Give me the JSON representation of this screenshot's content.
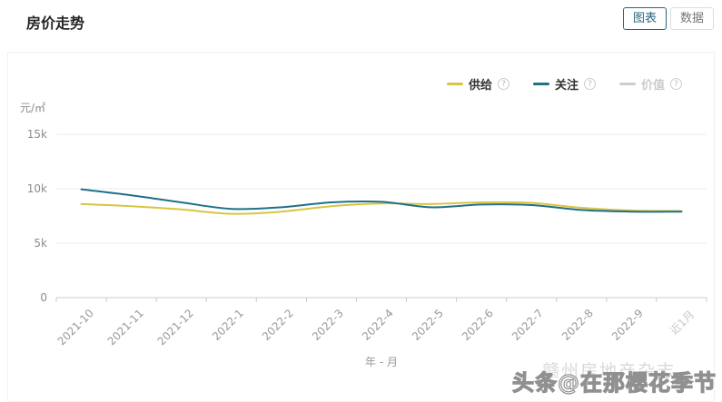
{
  "header": {
    "title": "房价走势"
  },
  "view_toggle": {
    "chart_label": "图表",
    "data_label": "数据",
    "active": "图表"
  },
  "legend": [
    {
      "label": "供给",
      "color": "#d9c542",
      "enabled": true,
      "help": "?"
    },
    {
      "label": "关注",
      "color": "#1f7089",
      "enabled": true,
      "help": "?"
    },
    {
      "label": "价值",
      "color": "#cccccc",
      "enabled": false,
      "help": "?"
    }
  ],
  "chart_data": {
    "type": "line",
    "title": "房价走势",
    "unit_label": "元/㎡",
    "xlabel": "年 - 月",
    "ylabel": "元/㎡",
    "grid": true,
    "legend_position": "top-right",
    "ylim": [
      0,
      15000
    ],
    "yticks": [
      {
        "label": "0",
        "value": 0
      },
      {
        "label": "5k",
        "value": 5000
      },
      {
        "label": "10k",
        "value": 10000
      },
      {
        "label": "15k",
        "value": 15000
      }
    ],
    "categories": [
      "2021-10",
      "2021-11",
      "2021-12",
      "2022-1",
      "2022-2",
      "2022-3",
      "2022-4",
      "2022-5",
      "2022-6",
      "2022-7",
      "2022-8",
      "2022-9",
      "近1月"
    ],
    "series": [
      {
        "name": "供给",
        "color": "#d9c542",
        "values": [
          8600,
          8400,
          8100,
          7700,
          7900,
          8400,
          8650,
          8600,
          8750,
          8700,
          8250,
          8000,
          7950
        ]
      },
      {
        "name": "关注",
        "color": "#1f7089",
        "values": [
          9950,
          9400,
          8750,
          8150,
          8300,
          8750,
          8800,
          8300,
          8550,
          8500,
          8050,
          7900,
          7900
        ]
      }
    ]
  },
  "watermark": {
    "background_text": "赣州房地产杂志",
    "foreground_text": "头条@在那樱花季节"
  }
}
